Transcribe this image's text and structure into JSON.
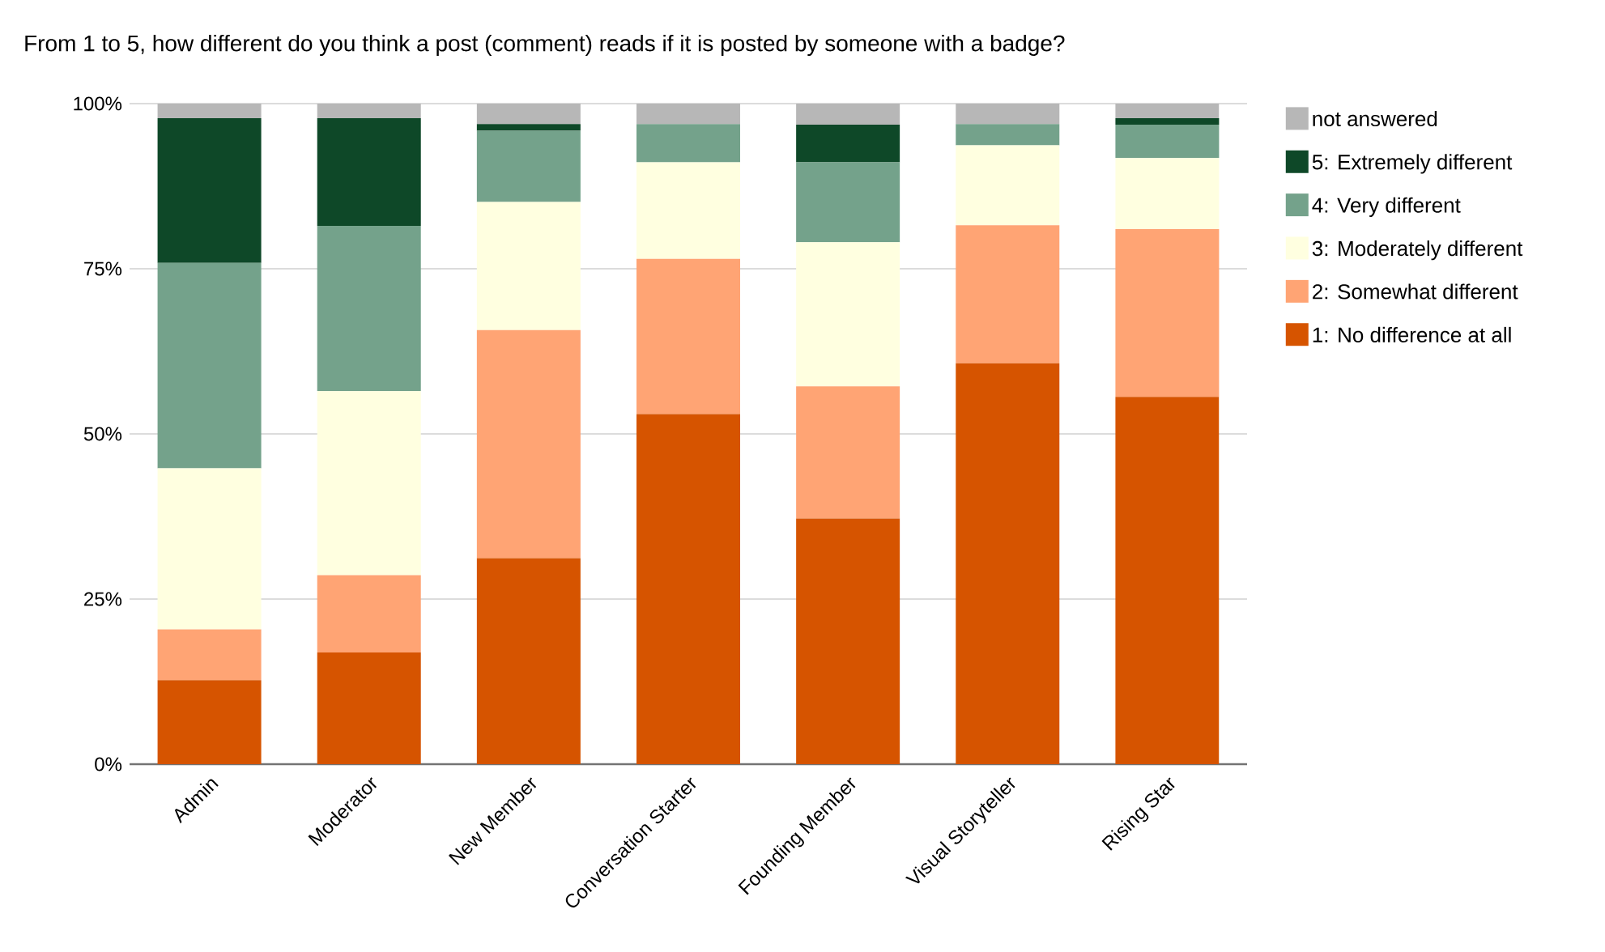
{
  "chart_data": {
    "type": "bar",
    "stacked": true,
    "title": "From 1 to 5, how different do you think a post (comment) reads if it is posted by someone with a badge?",
    "categories": [
      "Admin",
      "Moderator",
      "New Member",
      "Conversation Starter",
      "Founding Member",
      "Visual Storyteller",
      "Rising Star"
    ],
    "series": [
      {
        "name": "1: No difference at all",
        "color": "#d65400",
        "values": [
          12.7,
          16.9,
          31.2,
          53.0,
          37.2,
          60.7,
          55.6
        ]
      },
      {
        "name": "2: Somewhat different",
        "color": "#ffa474",
        "values": [
          7.7,
          11.7,
          34.5,
          23.5,
          20.0,
          20.9,
          25.4
        ]
      },
      {
        "name": "3: Moderately different",
        "color": "#ffffe0",
        "values": [
          24.4,
          27.9,
          19.4,
          14.6,
          21.8,
          12.1,
          10.8
        ]
      },
      {
        "name": "4: Very different",
        "color": "#74a28b",
        "values": [
          31.1,
          25.0,
          10.8,
          5.8,
          12.1,
          3.2,
          5.0
        ]
      },
      {
        "name": "5: Extremely different",
        "color": "#0e4828",
        "values": [
          21.9,
          16.3,
          1.0,
          0,
          5.7,
          0,
          1.0
        ]
      },
      {
        "name": "not answered",
        "color": "#b7b7b7",
        "values": [
          2.2,
          2.2,
          3.1,
          3.1,
          3.2,
          3.1,
          2.2
        ]
      }
    ],
    "ylim": [
      0,
      100
    ],
    "yticks": [
      {
        "value": 0,
        "label": "0%"
      },
      {
        "value": 25,
        "label": "25%"
      },
      {
        "value": 50,
        "label": "50%"
      },
      {
        "value": 75,
        "label": "75%"
      },
      {
        "value": 100,
        "label": "100%"
      }
    ],
    "grid": "y",
    "legend": "right"
  }
}
